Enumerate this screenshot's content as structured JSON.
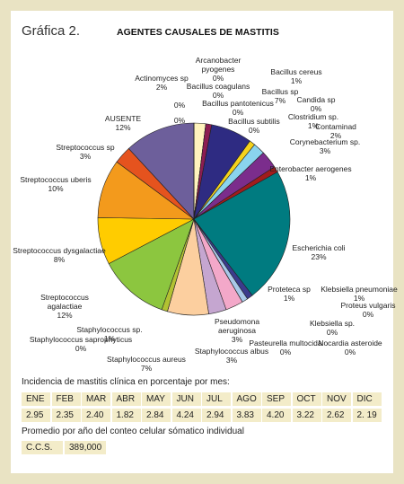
{
  "header": {
    "label": "Gráfica 2."
  },
  "chart_data": {
    "type": "pie",
    "title": "AGENTES CAUSALES DE MASTITIS",
    "categories": [
      "Actinomyces sp",
      "Arcanobacter pyogenes",
      "Bacillus coagulans",
      "Bacillus cereus",
      "Bacillus pantotenicus",
      "Bacillus sp",
      "Bacillus subtilis",
      "Candida sp",
      "Clostridium sp.",
      "Contaminad",
      "Corynebacterium sp.",
      "Enterobacter aerogenes",
      "Escherichia coli",
      "Proteteca sp",
      "Klebsiella pneumoniae",
      "Proteus vulgaris",
      "Klebsiella sp.",
      "Nocardia asteroide",
      "Pasteurella multocida",
      "Staphylococcus albus",
      "Pseudomona aeruginosa",
      "Staphylococcus aureus",
      "Staphylococcus saprophyticus",
      "Staphylococcus sp.",
      "Streptococcus agalactiae",
      "Streptococcus dysgalactiae",
      "Streptococcus uberis",
      "Streptococcus sp",
      "AUSENTE",
      null,
      null
    ],
    "values": [
      2,
      0,
      0,
      1,
      0,
      7,
      0,
      0,
      1,
      2,
      3,
      1,
      23,
      1,
      1,
      0,
      0,
      0,
      0,
      3,
      3,
      7,
      0,
      1,
      12,
      8,
      10,
      3,
      12,
      0,
      0
    ],
    "value_labels": [
      "2%",
      "0%",
      "0%",
      "1%",
      "0%",
      "7%",
      "0%",
      "0%",
      "1%",
      "2%",
      "3%",
      "1%",
      "23%",
      "1%",
      "1%",
      "0%",
      "0%",
      "0%",
      "0%",
      "3%",
      "3%",
      "7%",
      "0%",
      "1%",
      "12%",
      "8%",
      "10%",
      "3%",
      "12%",
      "0%",
      "0%"
    ],
    "colors": [
      "#fff3bd",
      "#d8d8d8",
      "#ffffff",
      "#8c1d52",
      "#cfcfcf",
      "#2e2b82",
      "#ffffff",
      "#ffffff",
      "#f5d21c",
      "#8ad4ee",
      "#7b2d8c",
      "#a11c1c",
      "#007b80",
      "#3b3b8c",
      "#a8c8e8",
      "#dddddd",
      "#dddddd",
      "#dddddd",
      "#dddddd",
      "#f3a8c9",
      "#c5a6d0",
      "#fccf9f",
      "#cccccc",
      "#b2c232",
      "#8cc63f",
      "#ffcc00",
      "#f39a1c",
      "#e5531e",
      "#6d5f9b",
      "#ffffff",
      "#ffffff"
    ]
  },
  "monthly": {
    "caption": "Incidencia de mastitis clínica en porcentaje por mes:",
    "months": [
      "ENE",
      "FEB",
      "MAR",
      "ABR",
      "MAY",
      "JUN",
      "JUL",
      "AGO",
      "SEP",
      "OCT",
      "NOV",
      "DIC"
    ],
    "values": [
      "2.95",
      "2.35",
      "2.40",
      "1.82",
      "2.84",
      "4.24",
      "2.94",
      "3.83",
      "4.20",
      "3.22",
      "2.62",
      "2. 19"
    ]
  },
  "ccs": {
    "caption": "Promedio por año del conteo celular sómatico individual",
    "label": "C.C.S.",
    "value": "389,000"
  }
}
